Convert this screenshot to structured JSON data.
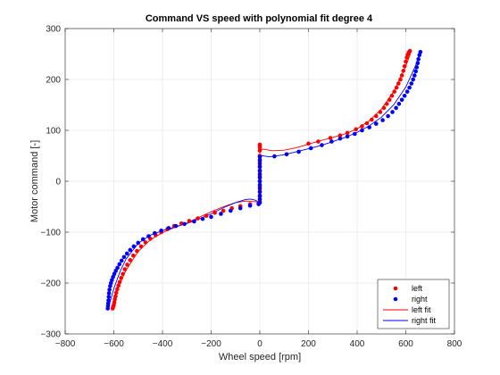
{
  "chart_data": {
    "type": "scatter",
    "title": "Command VS speed with polynomial fit degree 4",
    "xlabel": "Wheel speed [rpm]",
    "ylabel": "Motor command [-]",
    "xlim": [
      -800,
      800
    ],
    "ylim": [
      -300,
      300
    ],
    "xticks": [
      -800,
      -600,
      -400,
      -200,
      0,
      200,
      400,
      600,
      800
    ],
    "yticks": [
      -300,
      -200,
      -100,
      0,
      100,
      200,
      300
    ],
    "grid": true,
    "legend_position": "bottom-right",
    "colors": {
      "left": "#ff0000",
      "right": "#0000ff",
      "axes": "#262626",
      "grid": "#e6e6e6"
    },
    "series": [
      {
        "name": "left",
        "kind": "scatter",
        "color": "#ff0000",
        "points": [
          [
            -605,
            -250
          ],
          [
            -603,
            -247
          ],
          [
            -600,
            -243
          ],
          [
            -598,
            -238
          ],
          [
            -596,
            -232
          ],
          [
            -593,
            -226
          ],
          [
            -590,
            -219
          ],
          [
            -586,
            -212
          ],
          [
            -581,
            -205
          ],
          [
            -576,
            -198
          ],
          [
            -570,
            -190
          ],
          [
            -563,
            -182
          ],
          [
            -555,
            -173
          ],
          [
            -545,
            -164
          ],
          [
            -533,
            -155
          ],
          [
            -520,
            -146
          ],
          [
            -505,
            -137
          ],
          [
            -488,
            -128
          ],
          [
            -470,
            -120
          ],
          [
            -450,
            -113
          ],
          [
            -428,
            -106
          ],
          [
            -405,
            -100
          ],
          [
            -380,
            -94
          ],
          [
            -352,
            -88
          ],
          [
            -322,
            -83
          ],
          [
            -290,
            -78
          ],
          [
            -255,
            -73
          ],
          [
            -220,
            -68
          ],
          [
            -185,
            -62
          ],
          [
            -150,
            -58
          ],
          [
            -115,
            -53
          ],
          [
            -80,
            -49
          ],
          [
            -40,
            -45
          ],
          [
            -5,
            -44
          ],
          [
            0,
            -40
          ],
          [
            0,
            -30
          ],
          [
            0,
            -20
          ],
          [
            0,
            -10
          ],
          [
            0,
            0
          ],
          [
            0,
            10
          ],
          [
            0,
            20
          ],
          [
            0,
            30
          ],
          [
            0,
            40
          ],
          [
            0,
            50
          ],
          [
            0,
            60
          ],
          [
            0,
            66
          ],
          [
            0,
            70
          ],
          [
            0,
            72
          ],
          [
            200,
            74
          ],
          [
            240,
            78
          ],
          [
            290,
            85
          ],
          [
            330,
            90
          ],
          [
            360,
            95
          ],
          [
            395,
            102
          ],
          [
            420,
            108
          ],
          [
            440,
            114
          ],
          [
            460,
            121
          ],
          [
            478,
            128
          ],
          [
            495,
            136
          ],
          [
            510,
            144
          ],
          [
            522,
            152
          ],
          [
            533,
            160
          ],
          [
            543,
            168
          ],
          [
            553,
            176
          ],
          [
            562,
            184
          ],
          [
            570,
            192
          ],
          [
            578,
            200
          ],
          [
            584,
            208
          ],
          [
            590,
            217
          ],
          [
            595,
            226
          ],
          [
            600,
            235
          ],
          [
            604,
            243
          ],
          [
            608,
            249
          ],
          [
            612,
            253
          ],
          [
            617,
            256
          ]
        ]
      },
      {
        "name": "right",
        "kind": "scatter",
        "color": "#0000ff",
        "points": [
          [
            -625,
            -250
          ],
          [
            -624,
            -245
          ],
          [
            -623,
            -240
          ],
          [
            -622,
            -234
          ],
          [
            -621,
            -227
          ],
          [
            -620,
            -220
          ],
          [
            -618,
            -213
          ],
          [
            -615,
            -206
          ],
          [
            -612,
            -200
          ],
          [
            -608,
            -194
          ],
          [
            -603,
            -188
          ],
          [
            -598,
            -182
          ],
          [
            -592,
            -176
          ],
          [
            -585,
            -170
          ],
          [
            -577,
            -163
          ],
          [
            -568,
            -156
          ],
          [
            -558,
            -149
          ],
          [
            -546,
            -142
          ],
          [
            -533,
            -135
          ],
          [
            -518,
            -128
          ],
          [
            -500,
            -121
          ],
          [
            -480,
            -114
          ],
          [
            -457,
            -108
          ],
          [
            -432,
            -102
          ],
          [
            -405,
            -97
          ],
          [
            -375,
            -92
          ],
          [
            -345,
            -88
          ],
          [
            -310,
            -84
          ],
          [
            -270,
            -79
          ],
          [
            -235,
            -74
          ],
          [
            -200,
            -70
          ],
          [
            -160,
            -64
          ],
          [
            -120,
            -58
          ],
          [
            -80,
            -53
          ],
          [
            -40,
            -48
          ],
          [
            -5,
            -45
          ],
          [
            0,
            -42
          ],
          [
            0,
            -35
          ],
          [
            0,
            -28
          ],
          [
            0,
            -21
          ],
          [
            0,
            -14
          ],
          [
            0,
            -7
          ],
          [
            0,
            0
          ],
          [
            0,
            7
          ],
          [
            0,
            14
          ],
          [
            0,
            21
          ],
          [
            0,
            28
          ],
          [
            0,
            35
          ],
          [
            0,
            42
          ],
          [
            0,
            48
          ],
          [
            60,
            49
          ],
          [
            110,
            53
          ],
          [
            160,
            58
          ],
          [
            210,
            65
          ],
          [
            255,
            71
          ],
          [
            295,
            78
          ],
          [
            330,
            84
          ],
          [
            360,
            88
          ],
          [
            390,
            93
          ],
          [
            420,
            100
          ],
          [
            450,
            106
          ],
          [
            478,
            113
          ],
          [
            505,
            120
          ],
          [
            527,
            128
          ],
          [
            545,
            136
          ],
          [
            560,
            144
          ],
          [
            572,
            152
          ],
          [
            584,
            160
          ],
          [
            595,
            168
          ],
          [
            606,
            176
          ],
          [
            615,
            184
          ],
          [
            623,
            192
          ],
          [
            630,
            200
          ],
          [
            636,
            208
          ],
          [
            641,
            216
          ],
          [
            645,
            224
          ],
          [
            649,
            232
          ],
          [
            652,
            240
          ],
          [
            656,
            248
          ],
          [
            660,
            254
          ]
        ]
      },
      {
        "name": "left fit",
        "kind": "line",
        "color": "#ff0000",
        "points": [
          [
            -610,
            -253
          ],
          [
            -600,
            -235
          ],
          [
            -580,
            -207
          ],
          [
            -550,
            -175
          ],
          [
            -500,
            -138
          ],
          [
            -450,
            -115
          ],
          [
            -400,
            -101
          ],
          [
            -350,
            -91
          ],
          [
            -300,
            -82
          ],
          [
            -250,
            -71
          ],
          [
            -200,
            -60
          ],
          [
            -150,
            -50
          ],
          [
            -100,
            -42
          ],
          [
            -60,
            -39
          ],
          [
            -20,
            -40
          ],
          [
            0,
            -42
          ],
          [
            0,
            62
          ],
          [
            15,
            63
          ],
          [
            50,
            60
          ],
          [
            100,
            61
          ],
          [
            150,
            66
          ],
          [
            200,
            73
          ],
          [
            250,
            80
          ],
          [
            300,
            86
          ],
          [
            350,
            93
          ],
          [
            400,
            103
          ],
          [
            450,
            119
          ],
          [
            500,
            142
          ],
          [
            550,
            176
          ],
          [
            600,
            226
          ],
          [
            620,
            252
          ]
        ]
      },
      {
        "name": "right fit",
        "kind": "line",
        "color": "#0000ff",
        "points": [
          [
            -625,
            -253
          ],
          [
            -600,
            -211
          ],
          [
            -575,
            -178
          ],
          [
            -550,
            -153
          ],
          [
            -500,
            -122
          ],
          [
            -450,
            -106
          ],
          [
            -400,
            -97
          ],
          [
            -350,
            -90
          ],
          [
            -300,
            -83
          ],
          [
            -250,
            -74
          ],
          [
            -200,
            -64
          ],
          [
            -150,
            -52
          ],
          [
            -100,
            -42
          ],
          [
            -60,
            -36
          ],
          [
            -40,
            -35
          ],
          [
            -20,
            -37
          ],
          [
            0,
            -42
          ],
          [
            0,
            51
          ],
          [
            40,
            48
          ],
          [
            100,
            52
          ],
          [
            150,
            58
          ],
          [
            200,
            64
          ],
          [
            250,
            70
          ],
          [
            300,
            78
          ],
          [
            350,
            86
          ],
          [
            400,
            96
          ],
          [
            450,
            109
          ],
          [
            500,
            126
          ],
          [
            550,
            150
          ],
          [
            600,
            185
          ],
          [
            640,
            227
          ],
          [
            660,
            256
          ]
        ]
      }
    ]
  }
}
